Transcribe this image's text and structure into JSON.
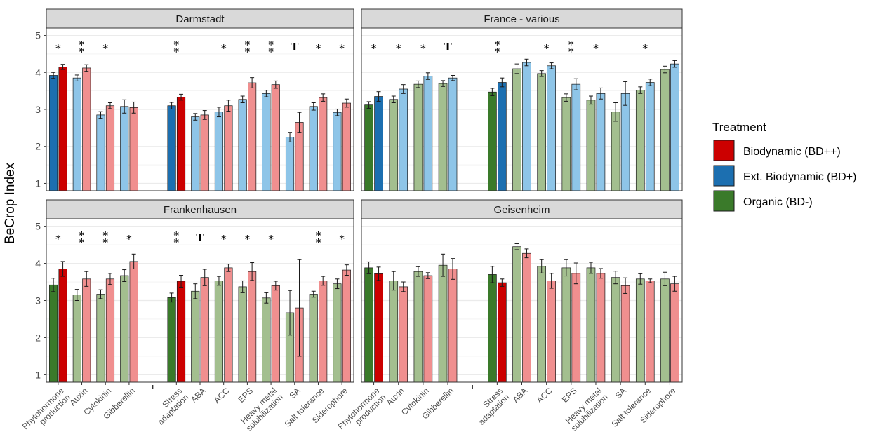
{
  "chart_data": {
    "type": "bar",
    "ylabel": "BeCrop Index",
    "ylim": [
      0.8,
      5.2
    ],
    "yticks": [
      1,
      2,
      3,
      4,
      5
    ],
    "grid": true,
    "legend_position": "right",
    "legend": {
      "title": "Treatment",
      "entries": [
        {
          "name": "Biodynamic (BD++)",
          "color": "#cc0000"
        },
        {
          "name": "Ext. Biodynamic (BD+)",
          "color": "#1c6fb0"
        },
        {
          "name": "Organic (BD-)",
          "color": "#3a7a2a"
        }
      ]
    },
    "categories": [
      {
        "label": "Phytohormone\nproduction",
        "group": 1
      },
      {
        "label": "Auxin",
        "group": 1
      },
      {
        "label": "Cytokinin",
        "group": 1
      },
      {
        "label": "Gibberellin",
        "group": 1
      },
      {
        "label": "Stress\nadaptation",
        "group": 2
      },
      {
        "label": "ABA",
        "group": 2
      },
      {
        "label": "ACC",
        "group": 2
      },
      {
        "label": "EPS",
        "group": 2
      },
      {
        "label": "Heavy metal\nsolubilization",
        "group": 2
      },
      {
        "label": "SA",
        "group": 2
      },
      {
        "label": "Salt tolerance",
        "group": 2
      },
      {
        "label": "Siderophore",
        "group": 2
      }
    ],
    "panels": [
      {
        "title": "Darmstadt",
        "comparison": [
          "BD+",
          "BD++"
        ],
        "bars": [
          {
            "a": [
              3.92,
              0.08
            ],
            "b": [
              4.15,
              0.07
            ],
            "sig": "*"
          },
          {
            "a": [
              3.85,
              0.08
            ],
            "b": [
              4.12,
              0.09
            ],
            "sig": "**"
          },
          {
            "a": [
              2.85,
              0.09
            ],
            "b": [
              3.1,
              0.08
            ],
            "sig": "*"
          },
          {
            "a": [
              3.08,
              0.18
            ],
            "b": [
              3.05,
              0.15
            ],
            "sig": ""
          },
          {
            "a": [
              3.1,
              0.09
            ],
            "b": [
              3.33,
              0.08
            ],
            "sig": "**"
          },
          {
            "a": [
              2.8,
              0.09
            ],
            "b": [
              2.85,
              0.12
            ],
            "sig": ""
          },
          {
            "a": [
              2.93,
              0.13
            ],
            "b": [
              3.1,
              0.15
            ],
            "sig": "*"
          },
          {
            "a": [
              3.27,
              0.09
            ],
            "b": [
              3.72,
              0.14
            ],
            "sig": "**"
          },
          {
            "a": [
              3.43,
              0.09
            ],
            "b": [
              3.67,
              0.1
            ],
            "sig": "**"
          },
          {
            "a": [
              2.25,
              0.13
            ],
            "b": [
              2.65,
              0.27
            ],
            "sig": "T"
          },
          {
            "a": [
              3.08,
              0.1
            ],
            "b": [
              3.32,
              0.1
            ],
            "sig": "*"
          },
          {
            "a": [
              2.92,
              0.09
            ],
            "b": [
              3.17,
              0.11
            ],
            "sig": "*"
          }
        ]
      },
      {
        "title": "France - various",
        "comparison": [
          "BD-",
          "BD+"
        ],
        "bars": [
          {
            "a": [
              3.12,
              0.09
            ],
            "b": [
              3.35,
              0.13
            ],
            "sig": "*"
          },
          {
            "a": [
              3.27,
              0.09
            ],
            "b": [
              3.55,
              0.12
            ],
            "sig": "*"
          },
          {
            "a": [
              3.68,
              0.09
            ],
            "b": [
              3.9,
              0.09
            ],
            "sig": "*"
          },
          {
            "a": [
              3.7,
              0.08
            ],
            "b": [
              3.85,
              0.07
            ],
            "sig": "T"
          },
          {
            "a": [
              3.47,
              0.1
            ],
            "b": [
              3.73,
              0.12
            ],
            "sig": "**"
          },
          {
            "a": [
              4.1,
              0.13
            ],
            "b": [
              4.27,
              0.09
            ],
            "sig": ""
          },
          {
            "a": [
              3.97,
              0.08
            ],
            "b": [
              4.18,
              0.08
            ],
            "sig": "*"
          },
          {
            "a": [
              3.32,
              0.1
            ],
            "b": [
              3.68,
              0.15
            ],
            "sig": "**"
          },
          {
            "a": [
              3.25,
              0.11
            ],
            "b": [
              3.43,
              0.15
            ],
            "sig": "*"
          },
          {
            "a": [
              2.93,
              0.25
            ],
            "b": [
              3.43,
              0.32
            ],
            "sig": ""
          },
          {
            "a": [
              3.52,
              0.09
            ],
            "b": [
              3.73,
              0.09
            ],
            "sig": "*"
          },
          {
            "a": [
              4.08,
              0.09
            ],
            "b": [
              4.23,
              0.09
            ],
            "sig": ""
          }
        ]
      },
      {
        "title": "Frankenhausen",
        "comparison": [
          "BD-",
          "BD++"
        ],
        "bars": [
          {
            "a": [
              3.42,
              0.18
            ],
            "b": [
              3.85,
              0.2
            ],
            "sig": "*"
          },
          {
            "a": [
              3.15,
              0.15
            ],
            "b": [
              3.58,
              0.2
            ],
            "sig": "**"
          },
          {
            "a": [
              3.17,
              0.12
            ],
            "b": [
              3.58,
              0.15
            ],
            "sig": "**"
          },
          {
            "a": [
              3.67,
              0.16
            ],
            "b": [
              4.05,
              0.2
            ],
            "sig": "*"
          },
          {
            "a": [
              3.08,
              0.12
            ],
            "b": [
              3.52,
              0.16
            ],
            "sig": "**"
          },
          {
            "a": [
              3.25,
              0.2
            ],
            "b": [
              3.62,
              0.22
            ],
            "sig": "T"
          },
          {
            "a": [
              3.53,
              0.12
            ],
            "b": [
              3.88,
              0.1
            ],
            "sig": "*"
          },
          {
            "a": [
              3.37,
              0.16
            ],
            "b": [
              3.78,
              0.24
            ],
            "sig": "*"
          },
          {
            "a": [
              3.07,
              0.14
            ],
            "b": [
              3.4,
              0.12
            ],
            "sig": "*"
          },
          {
            "a": [
              2.67,
              0.6
            ],
            "b": [
              2.8,
              1.3
            ],
            "sig": ""
          },
          {
            "a": [
              3.17,
              0.08
            ],
            "b": [
              3.53,
              0.12
            ],
            "sig": "**"
          },
          {
            "a": [
              3.45,
              0.13
            ],
            "b": [
              3.82,
              0.14
            ],
            "sig": "*"
          }
        ]
      },
      {
        "title": "Geisenheim",
        "comparison": [
          "BD-",
          "BD++"
        ],
        "bars": [
          {
            "a": [
              3.88,
              0.16
            ],
            "b": [
              3.72,
              0.18
            ],
            "sig": ""
          },
          {
            "a": [
              3.53,
              0.25
            ],
            "b": [
              3.37,
              0.13
            ],
            "sig": ""
          },
          {
            "a": [
              3.78,
              0.13
            ],
            "b": [
              3.67,
              0.08
            ],
            "sig": ""
          },
          {
            "a": [
              3.95,
              0.3
            ],
            "b": [
              3.85,
              0.28
            ],
            "sig": ""
          },
          {
            "a": [
              3.7,
              0.22
            ],
            "b": [
              3.48,
              0.1
            ],
            "sig": ""
          },
          {
            "a": [
              4.45,
              0.08
            ],
            "b": [
              4.27,
              0.12
            ],
            "sig": ""
          },
          {
            "a": [
              3.92,
              0.18
            ],
            "b": [
              3.53,
              0.2
            ],
            "sig": ""
          },
          {
            "a": [
              3.88,
              0.22
            ],
            "b": [
              3.73,
              0.28
            ],
            "sig": ""
          },
          {
            "a": [
              3.88,
              0.15
            ],
            "b": [
              3.73,
              0.13
            ],
            "sig": ""
          },
          {
            "a": [
              3.62,
              0.17
            ],
            "b": [
              3.4,
              0.21
            ],
            "sig": ""
          },
          {
            "a": [
              3.58,
              0.14
            ],
            "b": [
              3.53,
              0.05
            ],
            "sig": ""
          },
          {
            "a": [
              3.58,
              0.18
            ],
            "b": [
              3.45,
              0.2
            ],
            "sig": ""
          }
        ]
      }
    ]
  },
  "colors": {
    "BD++": {
      "dark": "#cc0000",
      "light": "#f08f8f"
    },
    "BD+": {
      "dark": "#1c6fb0",
      "light": "#8ec5e8"
    },
    "BD-": {
      "dark": "#3a7a2a",
      "light": "#a3bf8f"
    },
    "strip": "#d9d9d9",
    "grid": "#ebebeb"
  }
}
